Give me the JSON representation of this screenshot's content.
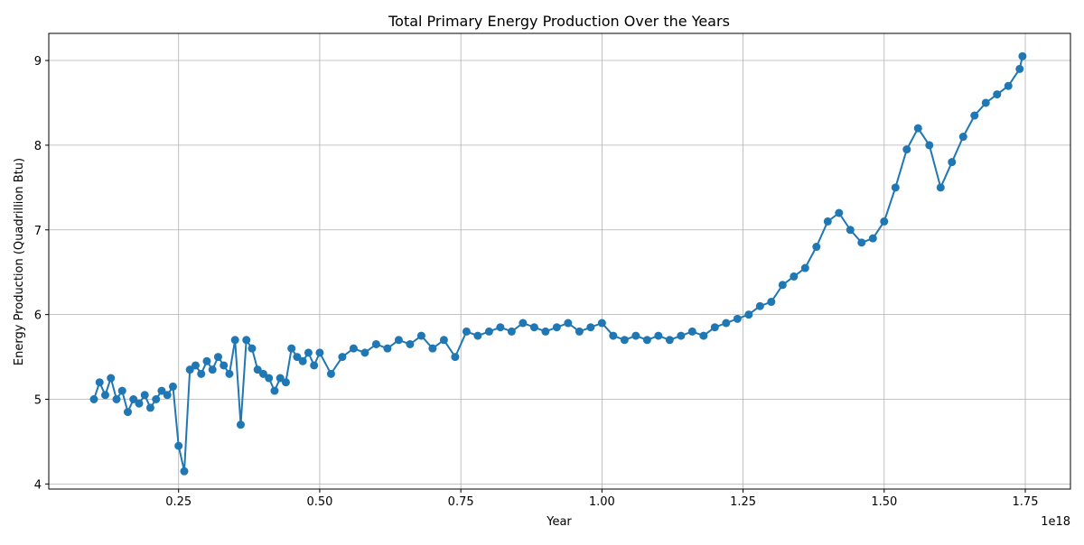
{
  "chart_data": {
    "type": "line",
    "title": "Total Primary Energy Production Over the Years",
    "xlabel": "Year",
    "ylabel": "Energy Production (Quadrillion Btu)",
    "x_offset_label": "1e18",
    "xlim": [
      0.02,
      1.83
    ],
    "ylim": [
      3.94,
      9.32
    ],
    "x_ticks": [
      0.25,
      0.5,
      0.75,
      1.0,
      1.25,
      1.5,
      1.75
    ],
    "x_tick_labels": [
      "0.25",
      "0.50",
      "0.75",
      "1.00",
      "1.25",
      "1.50",
      "1.75"
    ],
    "y_ticks": [
      4,
      5,
      6,
      7,
      8,
      9
    ],
    "y_tick_labels": [
      "4",
      "5",
      "6",
      "7",
      "8",
      "9"
    ],
    "grid": true,
    "series": [
      {
        "color": "#1f77b4",
        "marker": "circle",
        "x": [
          0.1,
          0.11,
          0.12,
          0.13,
          0.14,
          0.15,
          0.16,
          0.17,
          0.18,
          0.19,
          0.2,
          0.21,
          0.22,
          0.23,
          0.24,
          0.25,
          0.26,
          0.27,
          0.28,
          0.29,
          0.3,
          0.31,
          0.32,
          0.33,
          0.34,
          0.35,
          0.36,
          0.37,
          0.38,
          0.39,
          0.4,
          0.41,
          0.42,
          0.43,
          0.44,
          0.45,
          0.46,
          0.47,
          0.48,
          0.49,
          0.5,
          0.52,
          0.54,
          0.56,
          0.58,
          0.6,
          0.62,
          0.64,
          0.66,
          0.68,
          0.7,
          0.72,
          0.74,
          0.76,
          0.78,
          0.8,
          0.82,
          0.84,
          0.86,
          0.88,
          0.9,
          0.92,
          0.94,
          0.96,
          0.98,
          1.0,
          1.02,
          1.04,
          1.06,
          1.08,
          1.1,
          1.12,
          1.14,
          1.16,
          1.18,
          1.2,
          1.22,
          1.24,
          1.26,
          1.28,
          1.3,
          1.32,
          1.34,
          1.36,
          1.38,
          1.4,
          1.42,
          1.44,
          1.46,
          1.48,
          1.5,
          1.52,
          1.54,
          1.56,
          1.58,
          1.6,
          1.62,
          1.64,
          1.66,
          1.68,
          1.7,
          1.72,
          1.74,
          1.745
        ],
        "y": [
          5.0,
          5.2,
          5.05,
          5.25,
          5.0,
          5.1,
          4.85,
          5.0,
          4.95,
          5.05,
          4.9,
          5.0,
          5.1,
          5.05,
          5.15,
          4.45,
          4.15,
          5.35,
          5.4,
          5.3,
          5.45,
          5.35,
          5.5,
          5.4,
          5.3,
          5.7,
          4.7,
          5.7,
          5.6,
          5.35,
          5.3,
          5.25,
          5.1,
          5.25,
          5.2,
          5.6,
          5.5,
          5.45,
          5.55,
          5.4,
          5.55,
          5.3,
          5.5,
          5.6,
          5.55,
          5.65,
          5.6,
          5.7,
          5.65,
          5.75,
          5.6,
          5.7,
          5.5,
          5.8,
          5.75,
          5.8,
          5.85,
          5.8,
          5.9,
          5.85,
          5.8,
          5.85,
          5.9,
          5.8,
          5.85,
          5.9,
          5.75,
          5.7,
          5.75,
          5.7,
          5.75,
          5.7,
          5.75,
          5.8,
          5.75,
          5.85,
          5.9,
          5.95,
          6.0,
          6.1,
          6.15,
          6.35,
          6.45,
          6.55,
          6.8,
          7.1,
          7.2,
          7.0,
          6.85,
          6.9,
          7.1,
          7.5,
          7.95,
          8.2,
          8.0,
          7.5,
          7.8,
          8.1,
          8.35,
          8.5,
          8.6,
          8.7,
          8.9,
          9.05
        ]
      }
    ]
  }
}
